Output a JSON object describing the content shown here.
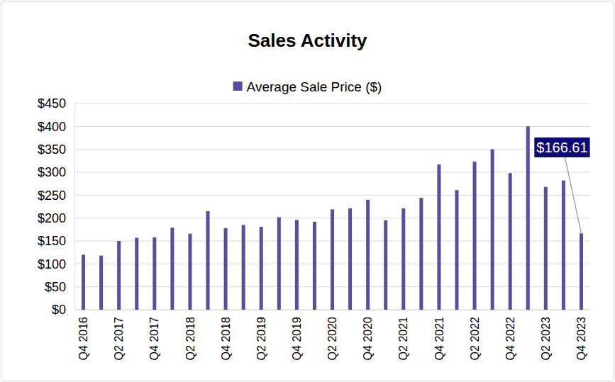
{
  "chart_data": {
    "type": "bar",
    "title": "Sales Activity",
    "categories": [
      "Q4 2016",
      null,
      "Q2 2017",
      null,
      "Q4 2017",
      null,
      "Q2 2018",
      null,
      "Q4 2018",
      null,
      "Q2 2019",
      null,
      "Q4 2019",
      null,
      "Q2 2020",
      null,
      "Q4 2020",
      null,
      "Q2 2021",
      null,
      "Q4 2021",
      null,
      "Q2 2022",
      null,
      "Q4 2022",
      null,
      "Q2 2023",
      null,
      "Q4 2023"
    ],
    "series": [
      {
        "name": "Average Sale Price ($)",
        "color": "#5a4d9c",
        "values": [
          120,
          118,
          150,
          157,
          158,
          179,
          166,
          215,
          178,
          185,
          181,
          202,
          196,
          192,
          219,
          221,
          240,
          195,
          221,
          244,
          317,
          261,
          323,
          350,
          298,
          400,
          268,
          282,
          166.61
        ]
      }
    ],
    "ylim": [
      0,
      450
    ],
    "yticks": [
      {
        "value": 0,
        "label": "$0"
      },
      {
        "value": 50,
        "label": "$50"
      },
      {
        "value": 100,
        "label": "$100"
      },
      {
        "value": 150,
        "label": "$150"
      },
      {
        "value": 200,
        "label": "$200"
      },
      {
        "value": 250,
        "label": "$250"
      },
      {
        "value": 300,
        "label": "$300"
      },
      {
        "value": 350,
        "label": "$350"
      },
      {
        "value": 400,
        "label": "$400"
      },
      {
        "value": 450,
        "label": "$450"
      }
    ],
    "grid": true,
    "legend": "top",
    "annotations": [
      {
        "text": "$166.61",
        "category": "Q4 2023",
        "color": "#0b0b7a"
      }
    ]
  }
}
